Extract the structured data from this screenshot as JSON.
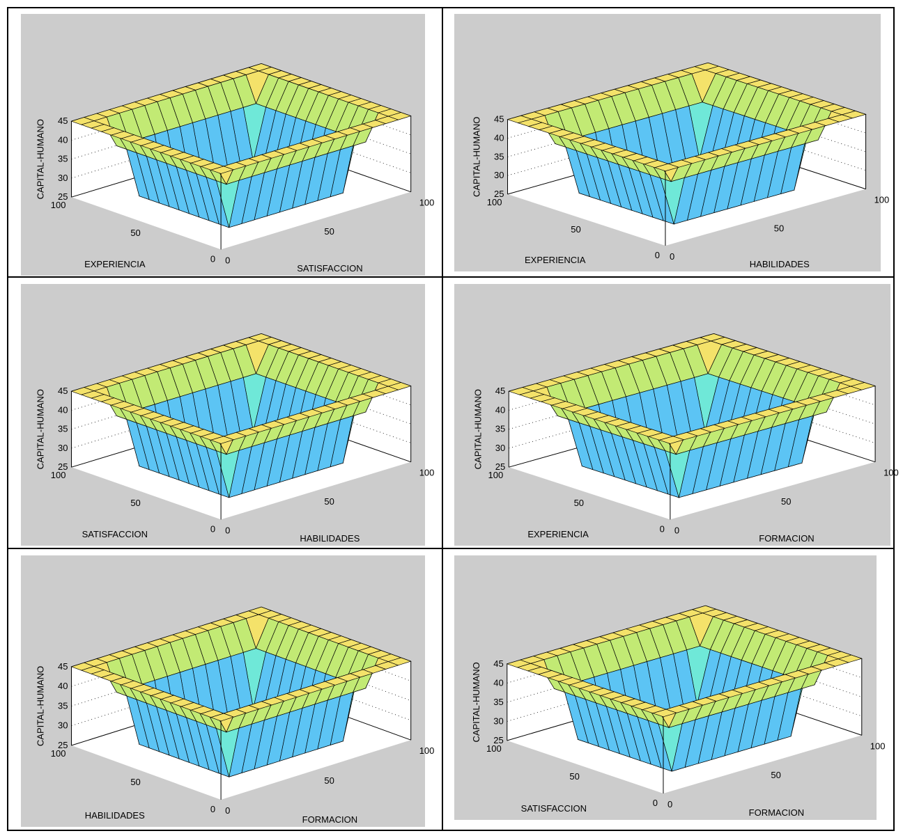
{
  "chart_data": [
    {
      "type": "surface",
      "zlabel": "CAPITAL-HUMANO",
      "xlabel": "EXPERIENCIA",
      "ylabel": "SATISFACCION",
      "zticks": [
        "25",
        "30",
        "35",
        "40",
        "45"
      ],
      "left_ticks": [
        "100",
        "50",
        "0"
      ],
      "right_ticks": [
        "0",
        "50",
        "100"
      ],
      "zlim": [
        25,
        45
      ],
      "xlim": [
        0,
        100
      ],
      "ylim": [
        0,
        100
      ]
    },
    {
      "type": "surface",
      "zlabel": "CAPITAL-HUMANO",
      "xlabel": "EXPERIENCIA",
      "ylabel": "HABILIDADES",
      "zticks": [
        "25",
        "30",
        "35",
        "40",
        "45"
      ],
      "left_ticks": [
        "100",
        "50",
        "0"
      ],
      "right_ticks": [
        "0",
        "50",
        "100"
      ],
      "zlim": [
        25,
        45
      ],
      "xlim": [
        0,
        100
      ],
      "ylim": [
        0,
        100
      ]
    },
    {
      "type": "surface",
      "zlabel": "CAPITAL-HUMANO",
      "xlabel": "SATISFACCION",
      "ylabel": "HABILIDADES",
      "zticks": [
        "25",
        "30",
        "35",
        "40",
        "45"
      ],
      "left_ticks": [
        "100",
        "50",
        "0"
      ],
      "right_ticks": [
        "0",
        "50",
        "100"
      ],
      "zlim": [
        25,
        45
      ],
      "xlim": [
        0,
        100
      ],
      "ylim": [
        0,
        100
      ]
    },
    {
      "type": "surface",
      "zlabel": "CAPITAL-HUMANO",
      "xlabel": "EXPERIENCIA",
      "ylabel": "FORMACION",
      "zticks": [
        "25",
        "30",
        "35",
        "40",
        "45"
      ],
      "left_ticks": [
        "100",
        "50",
        "0"
      ],
      "right_ticks": [
        "0",
        "50",
        "100"
      ],
      "zlim": [
        25,
        45
      ],
      "xlim": [
        0,
        100
      ],
      "ylim": [
        0,
        100
      ]
    },
    {
      "type": "surface",
      "zlabel": "CAPITAL-HUMANO",
      "xlabel": "HABILIDADES",
      "ylabel": "FORMACION",
      "zticks": [
        "25",
        "30",
        "35",
        "40",
        "45"
      ],
      "left_ticks": [
        "100",
        "50",
        "0"
      ],
      "right_ticks": [
        "0",
        "50",
        "100"
      ],
      "zlim": [
        25,
        45
      ],
      "xlim": [
        0,
        100
      ],
      "ylim": [
        0,
        100
      ]
    },
    {
      "type": "surface",
      "zlabel": "CAPITAL-HUMANO",
      "xlabel": "SATISFACCION",
      "ylabel": "FORMACION",
      "zticks": [
        "25",
        "30",
        "35",
        "40",
        "45"
      ],
      "left_ticks": [
        "100",
        "50",
        "0"
      ],
      "right_ticks": [
        "0",
        "50",
        "100"
      ],
      "zlim": [
        25,
        45
      ],
      "xlim": [
        0,
        100
      ],
      "ylim": [
        0,
        100
      ]
    }
  ],
  "colors": {
    "panel_bg": "#cccccc",
    "band_colors": [
      "#2f6fe6",
      "#3f97f0",
      "#5cc4f4",
      "#6fe8d8",
      "#8fe39a",
      "#c2ea74",
      "#f4e26a"
    ]
  }
}
